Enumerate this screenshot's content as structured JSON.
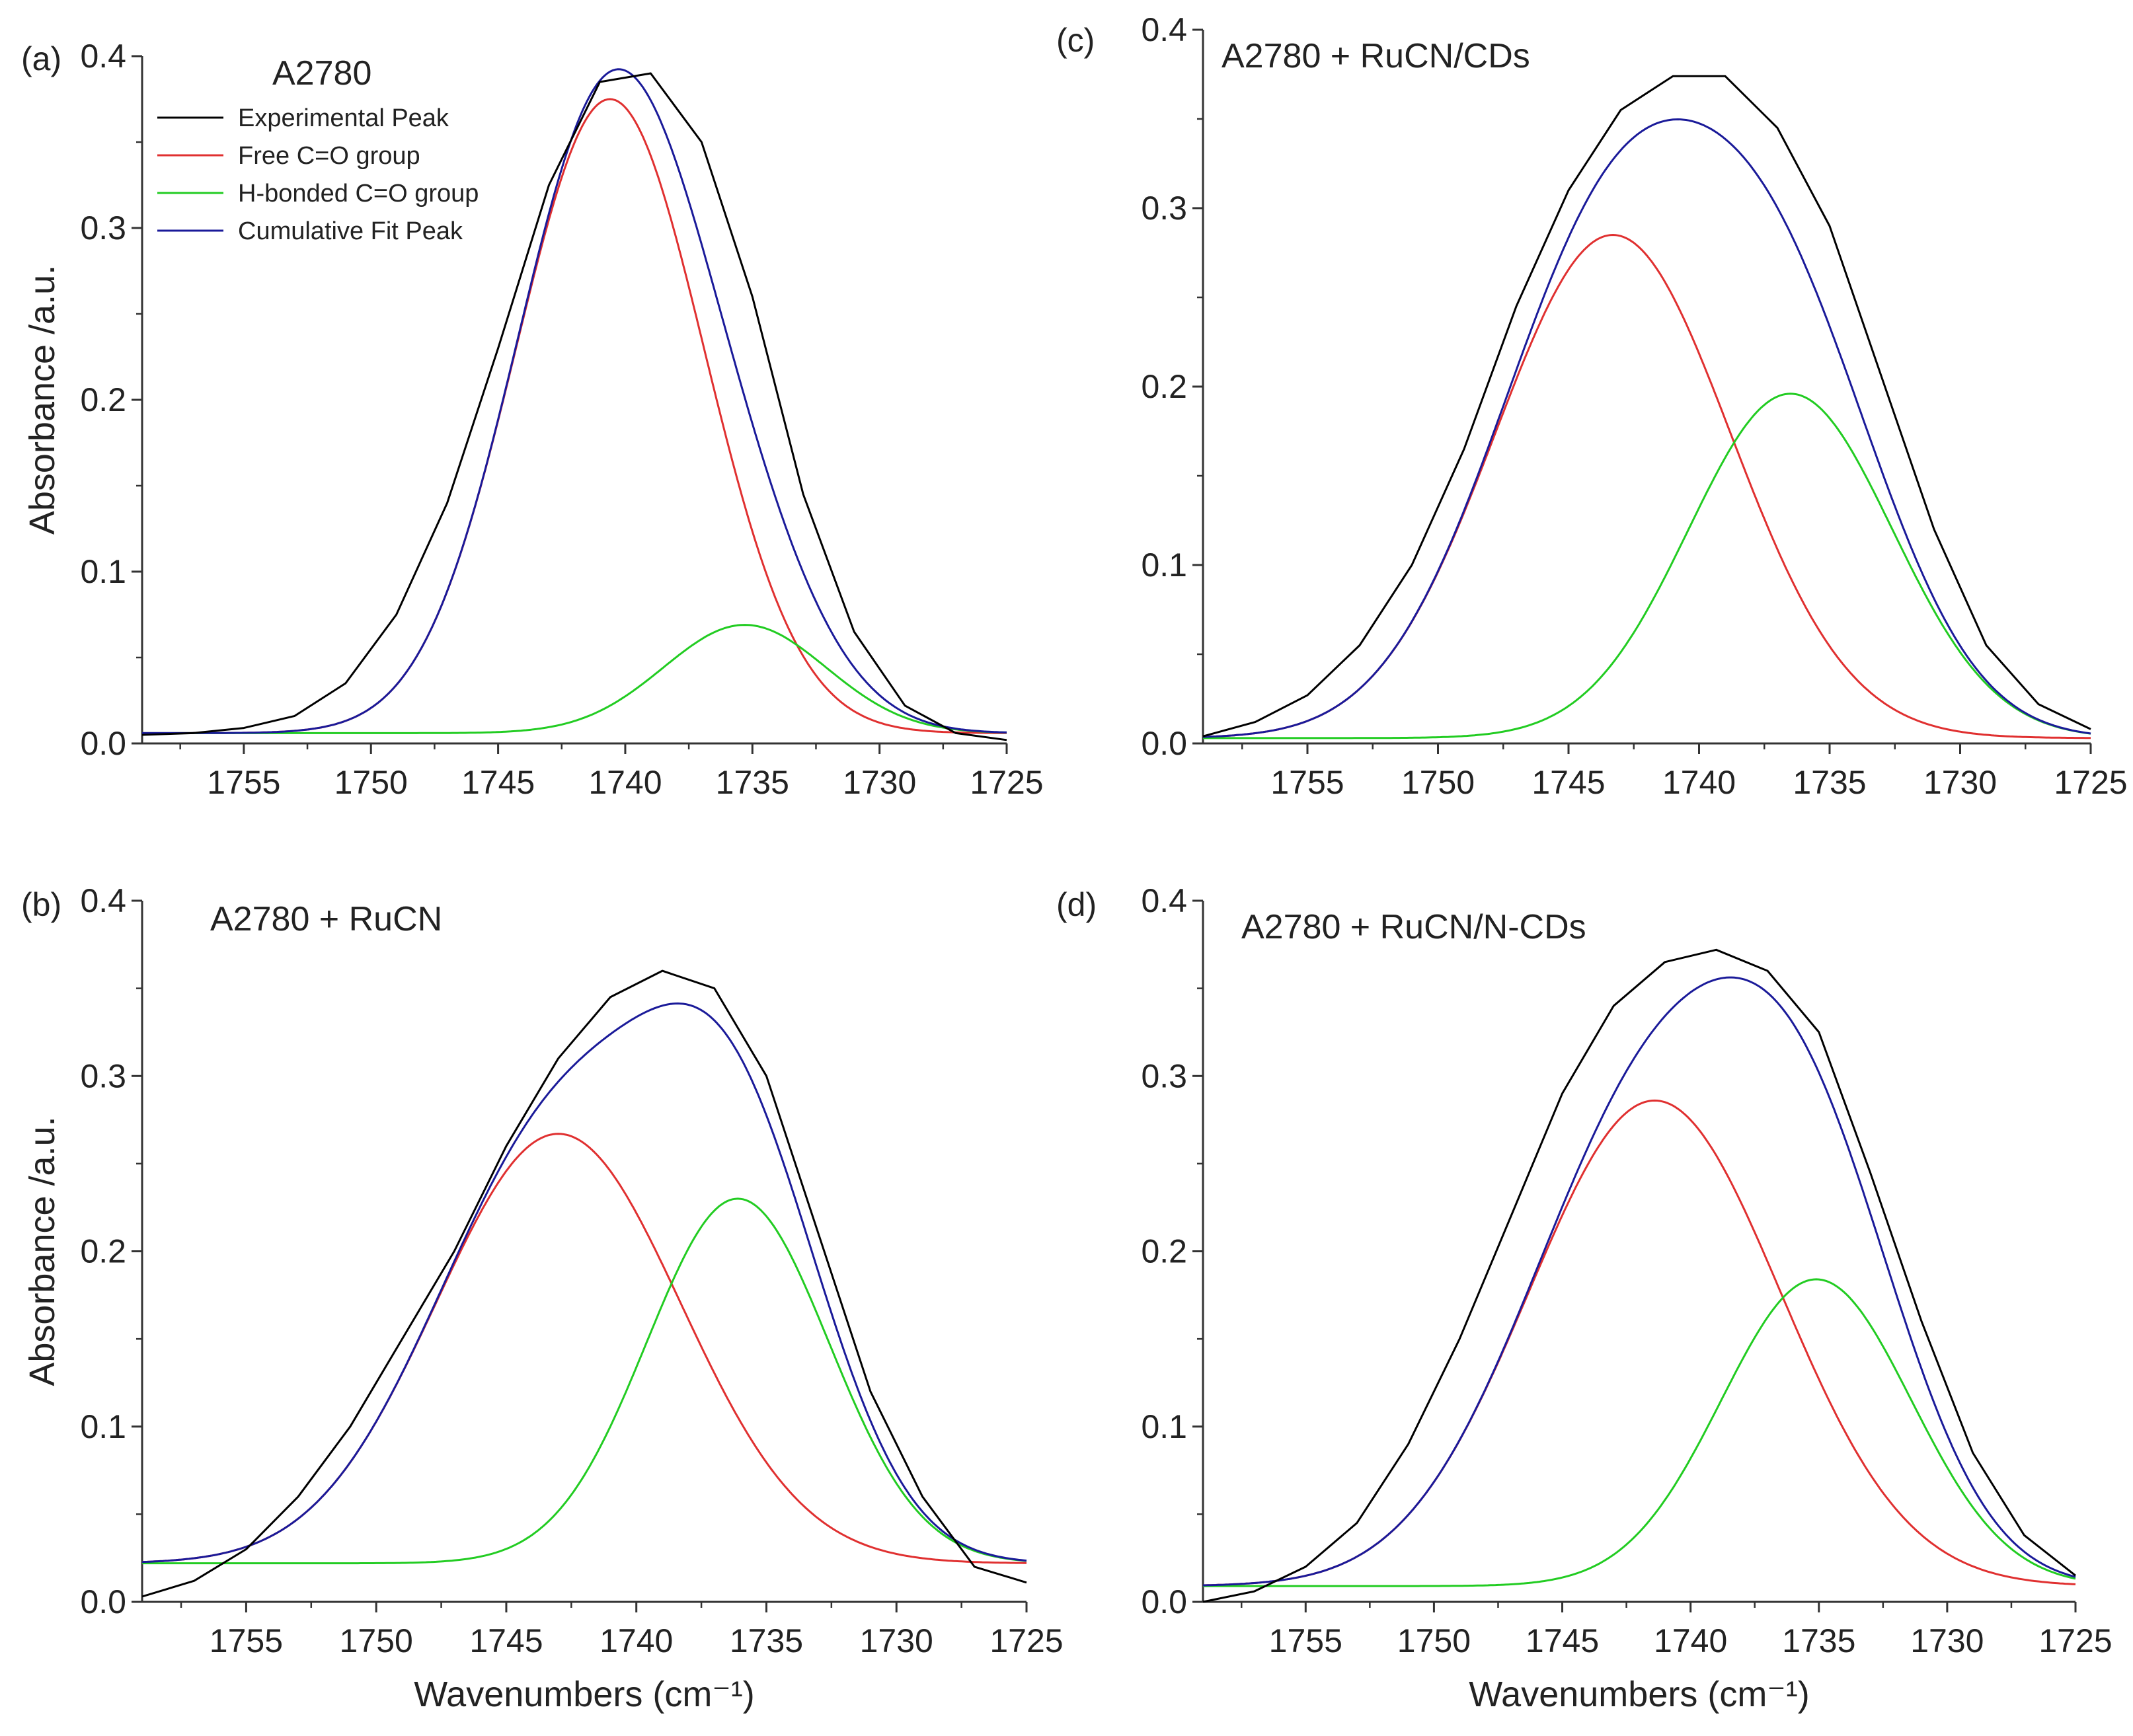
{
  "chart_data": [
    {
      "panel": "(a)",
      "type": "line",
      "title": "A2780",
      "ylabel": "Absorbance /a.u.",
      "xlabel": "",
      "xlim": [
        1759,
        1725
      ],
      "ylim": [
        0,
        0.4
      ],
      "xticks": [
        1755,
        1750,
        1745,
        1740,
        1735,
        1730,
        1725
      ],
      "yticks": [
        0.0,
        0.1,
        0.2,
        0.3,
        0.4
      ],
      "legend": "top-left",
      "series": [
        {
          "name": "Experimental Peak",
          "color": "#000000",
          "x": [
            1759,
            1757,
            1755,
            1753,
            1751,
            1749,
            1747,
            1745,
            1743,
            1741,
            1739,
            1737,
            1735,
            1733,
            1731,
            1729,
            1727,
            1725
          ],
          "y": [
            0.005,
            0.006,
            0.009,
            0.016,
            0.035,
            0.075,
            0.14,
            0.23,
            0.325,
            0.385,
            0.39,
            0.35,
            0.26,
            0.145,
            0.065,
            0.022,
            0.006,
            0.002
          ]
        },
        {
          "name": "Free C=O group",
          "color": "#e03030",
          "peak": {
            "center": 1740.6,
            "amp": 0.369,
            "sigma": 3.7,
            "base": 0.006
          }
        },
        {
          "name": "H-bonded C=O group",
          "color": "#22cc22",
          "peak": {
            "center": 1735.3,
            "amp": 0.063,
            "sigma": 3.2,
            "base": 0.006
          }
        },
        {
          "name": "Cumulative Fit Peak",
          "color": "#1a1a99",
          "sum_of": [
            1,
            2
          ],
          "base": 0.006
        }
      ]
    },
    {
      "panel": "(b)",
      "type": "line",
      "title": "A2780 + RuCN",
      "ylabel": "Absorbance /a.u.",
      "xlabel": "Wavenumbers (cm⁻¹)",
      "xlim": [
        1759,
        1725
      ],
      "ylim": [
        0,
        0.4
      ],
      "xticks": [
        1755,
        1750,
        1745,
        1740,
        1735,
        1730,
        1725
      ],
      "yticks": [
        0.0,
        0.1,
        0.2,
        0.3,
        0.4
      ],
      "series": [
        {
          "name": "Experimental Peak",
          "color": "#000000",
          "x": [
            1759,
            1757,
            1755,
            1753,
            1751,
            1749,
            1747,
            1745,
            1743,
            1741,
            1739,
            1737,
            1735,
            1733,
            1731,
            1729,
            1727,
            1725
          ],
          "y": [
            0.003,
            0.012,
            0.03,
            0.06,
            0.1,
            0.15,
            0.2,
            0.26,
            0.31,
            0.345,
            0.36,
            0.35,
            0.3,
            0.21,
            0.12,
            0.06,
            0.02,
            0.011
          ]
        },
        {
          "name": "Free C=O group",
          "color": "#e03030",
          "peak": {
            "center": 1743.0,
            "amp": 0.245,
            "sigma": 4.7,
            "base": 0.022
          }
        },
        {
          "name": "H-bonded C=O group",
          "color": "#22cc22",
          "peak": {
            "center": 1736.1,
            "amp": 0.208,
            "sigma": 3.5,
            "base": 0.022
          }
        },
        {
          "name": "Cumulative Fit Peak",
          "color": "#1a1a99",
          "sum_of": [
            1,
            2
          ],
          "base": 0.022
        }
      ]
    },
    {
      "panel": "(c)",
      "type": "line",
      "title": "A2780 + RuCN/CDs",
      "ylabel": "",
      "xlabel": "",
      "xlim": [
        1759,
        1725
      ],
      "ylim": [
        0,
        0.4
      ],
      "xticks": [
        1755,
        1750,
        1745,
        1740,
        1735,
        1730,
        1725
      ],
      "yticks": [
        0.0,
        0.1,
        0.2,
        0.3,
        0.4
      ],
      "series": [
        {
          "name": "Experimental Peak",
          "color": "#000000",
          "x": [
            1759,
            1757,
            1755,
            1753,
            1751,
            1749,
            1747,
            1745,
            1743,
            1741,
            1739,
            1737,
            1735,
            1733,
            1731,
            1729,
            1727,
            1725
          ],
          "y": [
            0.004,
            0.012,
            0.027,
            0.055,
            0.1,
            0.165,
            0.245,
            0.31,
            0.355,
            0.374,
            0.374,
            0.345,
            0.29,
            0.205,
            0.12,
            0.055,
            0.022,
            0.008
          ]
        },
        {
          "name": "Free C=O group",
          "color": "#e03030",
          "peak": {
            "center": 1743.3,
            "amp": 0.282,
            "sigma": 4.5,
            "base": 0.003
          }
        },
        {
          "name": "H-bonded C=O group",
          "color": "#22cc22",
          "peak": {
            "center": 1736.5,
            "amp": 0.193,
            "sigma": 3.9,
            "base": 0.003
          }
        },
        {
          "name": "Cumulative Fit Peak",
          "color": "#1a1a99",
          "sum_of": [
            1,
            2
          ],
          "base": 0.003
        }
      ]
    },
    {
      "panel": "(d)",
      "type": "line",
      "title": "A2780 + RuCN/N-CDs",
      "ylabel": "",
      "xlabel": "Wavenumbers (cm⁻¹)",
      "xlim": [
        1759,
        1725
      ],
      "ylim": [
        0,
        0.4
      ],
      "xticks": [
        1755,
        1750,
        1745,
        1740,
        1735,
        1730,
        1725
      ],
      "yticks": [
        0.0,
        0.1,
        0.2,
        0.3,
        0.4
      ],
      "series": [
        {
          "name": "Experimental Peak",
          "color": "#000000",
          "x": [
            1759,
            1757,
            1755,
            1753,
            1751,
            1749,
            1747,
            1745,
            1743,
            1741,
            1739,
            1737,
            1735,
            1733,
            1731,
            1729,
            1727,
            1725
          ],
          "y": [
            0.0,
            0.006,
            0.02,
            0.045,
            0.09,
            0.15,
            0.22,
            0.29,
            0.34,
            0.365,
            0.372,
            0.36,
            0.325,
            0.245,
            0.16,
            0.085,
            0.038,
            0.015
          ]
        },
        {
          "name": "Free C=O group",
          "color": "#e03030",
          "peak": {
            "center": 1741.4,
            "amp": 0.277,
            "sigma": 4.9,
            "base": 0.009
          }
        },
        {
          "name": "H-bonded C=O group",
          "color": "#22cc22",
          "peak": {
            "center": 1735.1,
            "amp": 0.175,
            "sigma": 3.7,
            "base": 0.009
          }
        },
        {
          "name": "Cumulative Fit Peak",
          "color": "#1a1a99",
          "sum_of": [
            1,
            2
          ],
          "base": 0.009
        }
      ]
    }
  ]
}
